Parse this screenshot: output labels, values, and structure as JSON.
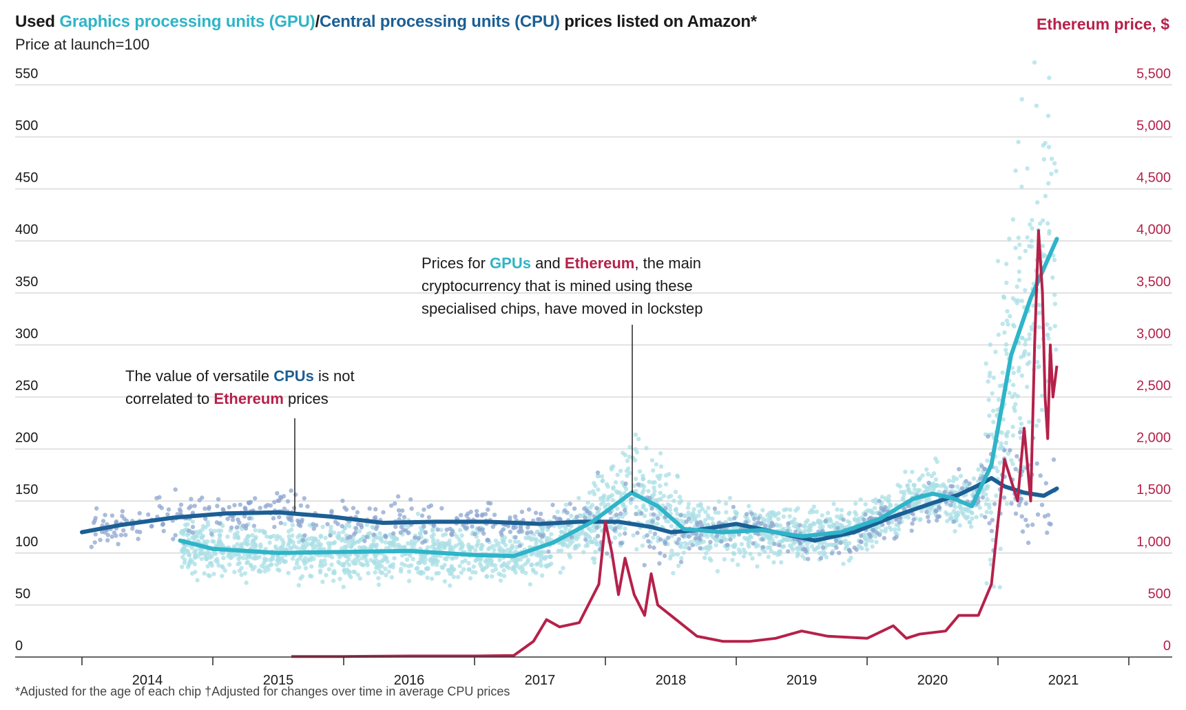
{
  "header": {
    "title_prefix": "Used ",
    "title_gpu": "Graphics processing units (GPU)",
    "title_sep": "/",
    "title_cpu": "Central processing units (CPU)",
    "title_suffix": " prices listed on Amazon*",
    "subtitle": "Price at launch=100",
    "right_axis_title": "Ethereum price, $"
  },
  "annotations": {
    "gpu_eth": {
      "line1_pre": "Prices for ",
      "line1_gpu": "GPUs",
      "line1_mid": " and ",
      "line1_eth": "Ethereum",
      "line1_post": ", the main",
      "line2": "cryptocurrency that is mined using these",
      "line3": "specialised chips, have moved in lockstep"
    },
    "cpu": {
      "line1_pre": "The value of versatile ",
      "line1_cpu": "CPUs",
      "line1_post": " is not",
      "line2_pre": "correlated to ",
      "line2_eth": "Ethereum",
      "line2_post": " prices"
    }
  },
  "footnote": "*Adjusted for the age of each chip †Adjusted for changes over time in average CPU prices",
  "chart_data": {
    "type": "line",
    "colors": {
      "gpu": "#2fb4c8",
      "gpu_dots": "#a9dfe6",
      "cpu": "#1b5f94",
      "cpu_dots": "#8ea6cf",
      "eth": "#b5214a",
      "grid": "#d4d4d4"
    },
    "x_ticks": [
      "2014",
      "2015",
      "2016",
      "2017",
      "2018",
      "2019",
      "2020",
      "2021"
    ],
    "xlim": [
      2013.5,
      2021.5
    ],
    "y_left": {
      "ticks": [
        "0",
        "50",
        "100",
        "150",
        "200",
        "250",
        "300",
        "350",
        "400",
        "450",
        "500",
        "550"
      ],
      "ylim": [
        0,
        550
      ]
    },
    "y_right": {
      "ticks": [
        "0",
        "500",
        "1,000",
        "1,500",
        "2,000",
        "2,500",
        "3,000",
        "3,500",
        "4,000",
        "4,500",
        "5,000",
        "5,500"
      ],
      "ylim": [
        0,
        5500
      ]
    },
    "series": [
      {
        "name": "Graphics processing units (GPU)",
        "axis": "left",
        "x": [
          2014.25,
          2014.5,
          2015.0,
          2015.5,
          2016.0,
          2016.5,
          2016.8,
          2017.1,
          2017.4,
          2017.7,
          2017.9,
          2018.1,
          2018.4,
          2018.7,
          2019.0,
          2019.3,
          2019.6,
          2019.85,
          2020.0,
          2020.15,
          2020.3,
          2020.45,
          2020.6,
          2020.75,
          2020.95
        ],
        "values": [
          112,
          104,
          100,
          101,
          102,
          98,
          97,
          110,
          130,
          158,
          145,
          123,
          120,
          122,
          116,
          120,
          133,
          152,
          157,
          153,
          145,
          185,
          290,
          345,
          402
        ]
      },
      {
        "name": "Central processing units (CPU)",
        "axis": "left",
        "x": [
          2013.5,
          2013.8,
          2014.2,
          2014.6,
          2015.0,
          2015.4,
          2015.8,
          2016.2,
          2016.6,
          2017.0,
          2017.3,
          2017.6,
          2017.85,
          2018.0,
          2018.2,
          2018.5,
          2018.8,
          2019.1,
          2019.4,
          2019.7,
          2020.0,
          2020.2,
          2020.35,
          2020.45,
          2020.55,
          2020.7,
          2020.85,
          2020.95
        ],
        "values": [
          120,
          127,
          134,
          138,
          139,
          135,
          129,
          130,
          130,
          128,
          130,
          130,
          125,
          120,
          122,
          128,
          120,
          112,
          120,
          135,
          148,
          156,
          165,
          172,
          164,
          158,
          155,
          162
        ]
      },
      {
        "name": "Ethereum price, $",
        "axis": "right",
        "x": [
          2015.1,
          2015.5,
          2016.0,
          2016.5,
          2016.8,
          2016.95,
          2017.05,
          2017.15,
          2017.3,
          2017.45,
          2017.5,
          2017.55,
          2017.6,
          2017.65,
          2017.72,
          2017.8,
          2017.85,
          2017.9,
          2018.0,
          2018.2,
          2018.4,
          2018.6,
          2018.8,
          2019.0,
          2019.2,
          2019.5,
          2019.7,
          2019.8,
          2019.9,
          2020.1,
          2020.2,
          2020.35,
          2020.45,
          2020.5,
          2020.55,
          2020.6,
          2020.65,
          2020.7,
          2020.75,
          2020.78,
          2020.81,
          2020.84,
          2020.86,
          2020.88,
          2020.9,
          2020.92,
          2020.95
        ],
        "values": [
          5,
          5,
          10,
          10,
          15,
          150,
          360,
          290,
          330,
          700,
          1300,
          1000,
          600,
          950,
          600,
          400,
          800,
          500,
          400,
          200,
          150,
          150,
          180,
          250,
          200,
          180,
          300,
          180,
          220,
          250,
          400,
          400,
          700,
          1300,
          1900,
          1700,
          1500,
          2200,
          1500,
          3000,
          4100,
          3500,
          2500,
          2100,
          3000,
          2500,
          2800
        ]
      }
    ]
  }
}
